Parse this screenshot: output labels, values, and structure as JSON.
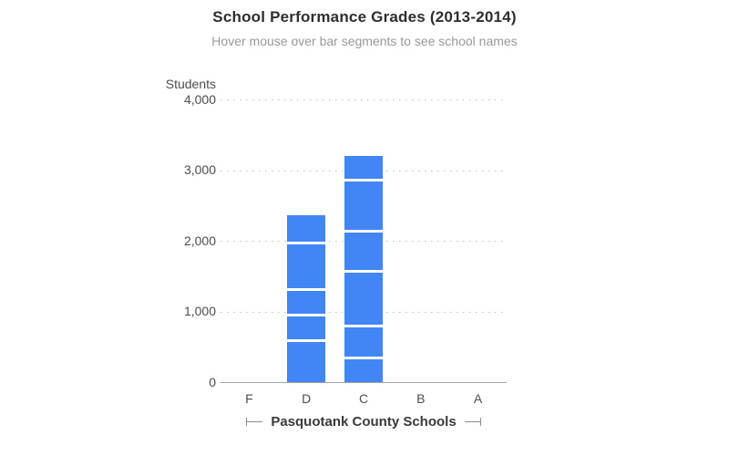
{
  "chart_data": {
    "type": "bar",
    "stacked": true,
    "title": "School Performance Grades (2013-2014)",
    "subtitle": "Hover mouse over bar segments to see school names",
    "ylabel": "Students",
    "xlabel": "Pasquotank County Schools",
    "categories": [
      "F",
      "D",
      "C",
      "B",
      "A"
    ],
    "ylim": [
      0,
      4000
    ],
    "yticks": [
      0,
      1000,
      2000,
      3000,
      4000
    ],
    "ytick_labels": [
      "0",
      "1,000",
      "2,000",
      "3,000",
      "4,000"
    ],
    "grid": "horizontal-dotted",
    "legend": "none",
    "stacks": [
      {
        "category": "F",
        "segments": [],
        "total": 0
      },
      {
        "category": "D",
        "segments": [
          605,
          365,
          365,
          650,
          380
        ],
        "total": 2365
      },
      {
        "category": "C",
        "segments": [
          365,
          450,
          775,
          560,
          730,
          325
        ],
        "total": 3205
      },
      {
        "category": "B",
        "segments": [],
        "total": 0
      },
      {
        "category": "A",
        "segments": [],
        "total": 0
      }
    ],
    "colors": {
      "bar": "#4285f4",
      "segment_divider": "#ffffff",
      "gridline": "#c2c2c2",
      "axis_line": "#a3a3a3",
      "title": "#2e2e2e",
      "subtitle": "#999999",
      "tick_label": "#4d4d4d",
      "xlabel": "#3a3a3a"
    }
  }
}
